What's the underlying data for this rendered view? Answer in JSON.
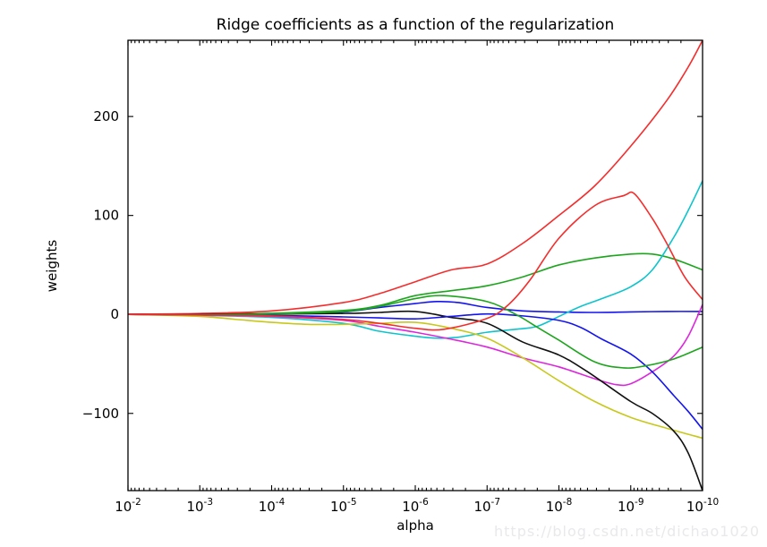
{
  "title": "Ridge coefficients as a function of the regularization",
  "watermark": "https://blog.csdn.net/dichao1020",
  "chart_data": {
    "type": "line",
    "title": "Ridge coefficients as a function of the regularization",
    "xlabel": "alpha",
    "ylabel": "weights",
    "x_scale": "log",
    "x_axis_reversed": true,
    "grid": false,
    "legend": null,
    "x_tick_exponents": [
      -2,
      -3,
      -4,
      -5,
      -6,
      -7,
      -8,
      -9,
      -10
    ],
    "x_tick_labels": [
      "10^-2",
      "10^-3",
      "10^-4",
      "10^-5",
      "10^-6",
      "10^-7",
      "10^-8",
      "10^-9",
      "10^-10"
    ],
    "y_ticks": [
      -100,
      0,
      100,
      200
    ],
    "xlim_log10_alpha": [
      -2,
      -10
    ],
    "ylim": [
      -178,
      277
    ],
    "series": [
      {
        "name": "coef_0_blue",
        "color": "#1414f0",
        "points": [
          [
            -2,
            0
          ],
          [
            -3,
            0.3
          ],
          [
            -4,
            1
          ],
          [
            -4.5,
            1.6
          ],
          [
            -5,
            2.5
          ],
          [
            -5.5,
            7
          ],
          [
            -6,
            11
          ],
          [
            -6.3,
            13
          ],
          [
            -6.6,
            12
          ],
          [
            -7,
            7
          ],
          [
            -7.5,
            3.5
          ],
          [
            -8,
            2.5
          ],
          [
            -8.5,
            2
          ],
          [
            -9,
            2.5
          ],
          [
            -9.5,
            3
          ],
          [
            -10,
            3
          ]
        ]
      },
      {
        "name": "coef_1_green",
        "color": "#1da51d",
        "points": [
          [
            -2,
            0
          ],
          [
            -3,
            0.4
          ],
          [
            -4,
            1.2
          ],
          [
            -5,
            4
          ],
          [
            -5.5,
            9
          ],
          [
            -6,
            19
          ],
          [
            -6.5,
            24
          ],
          [
            -7,
            29
          ],
          [
            -7.5,
            38
          ],
          [
            -8,
            50
          ],
          [
            -8.5,
            57
          ],
          [
            -9,
            61
          ],
          [
            -9.3,
            61
          ],
          [
            -9.6,
            56
          ],
          [
            -10,
            45
          ]
        ]
      },
      {
        "name": "coef_2_red",
        "color": "#f52c2c",
        "points": [
          [
            -2,
            0.3
          ],
          [
            -3,
            1
          ],
          [
            -4,
            3.5
          ],
          [
            -5,
            12
          ],
          [
            -5.5,
            21
          ],
          [
            -6,
            33
          ],
          [
            -6.5,
            45
          ],
          [
            -7,
            51
          ],
          [
            -7.5,
            72
          ],
          [
            -8,
            100
          ],
          [
            -8.5,
            130
          ],
          [
            -9,
            170
          ],
          [
            -9.5,
            216
          ],
          [
            -9.8,
            250
          ],
          [
            -10,
            277
          ]
        ]
      },
      {
        "name": "coef_3_cyan",
        "color": "#0ec4cc",
        "points": [
          [
            -2,
            0
          ],
          [
            -3,
            -1
          ],
          [
            -4,
            -3
          ],
          [
            -5,
            -9
          ],
          [
            -5.5,
            -17
          ],
          [
            -6,
            -22
          ],
          [
            -6.3,
            -24
          ],
          [
            -6.6,
            -23
          ],
          [
            -7,
            -18
          ],
          [
            -7.4,
            -15
          ],
          [
            -7.7,
            -12
          ],
          [
            -8,
            -2
          ],
          [
            -8.3,
            8
          ],
          [
            -8.6,
            16
          ],
          [
            -9,
            28
          ],
          [
            -9.3,
            45
          ],
          [
            -9.6,
            78
          ],
          [
            -9.8,
            105
          ],
          [
            -10,
            135
          ]
        ]
      },
      {
        "name": "coef_4_magenta",
        "color": "#dc28dc",
        "points": [
          [
            -2,
            0
          ],
          [
            -3,
            -0.6
          ],
          [
            -4,
            -2
          ],
          [
            -5,
            -6
          ],
          [
            -5.5,
            -12
          ],
          [
            -6,
            -18
          ],
          [
            -6.5,
            -25
          ],
          [
            -7,
            -33
          ],
          [
            -7.5,
            -44
          ],
          [
            -8,
            -53
          ],
          [
            -8.5,
            -65
          ],
          [
            -8.8,
            -71
          ],
          [
            -9,
            -70
          ],
          [
            -9.3,
            -58
          ],
          [
            -9.6,
            -42
          ],
          [
            -9.8,
            -22
          ],
          [
            -10,
            10
          ]
        ]
      },
      {
        "name": "coef_5_yellow",
        "color": "#c8c81b",
        "points": [
          [
            -2,
            0
          ],
          [
            -3,
            -2
          ],
          [
            -3.5,
            -5
          ],
          [
            -4,
            -8
          ],
          [
            -4.5,
            -10
          ],
          [
            -5,
            -10
          ],
          [
            -5.5,
            -9
          ],
          [
            -6,
            -8
          ],
          [
            -6.5,
            -14
          ],
          [
            -7,
            -24
          ],
          [
            -7.5,
            -44
          ],
          [
            -8,
            -67
          ],
          [
            -8.5,
            -88
          ],
          [
            -9,
            -104
          ],
          [
            -9.5,
            -115
          ],
          [
            -10,
            -125
          ]
        ]
      },
      {
        "name": "coef_6_black",
        "color": "#111111",
        "points": [
          [
            -2,
            0
          ],
          [
            -3,
            0
          ],
          [
            -4,
            0.4
          ],
          [
            -5,
            1
          ],
          [
            -5.5,
            2
          ],
          [
            -6,
            3
          ],
          [
            -6.5,
            -3
          ],
          [
            -7,
            -9
          ],
          [
            -7.5,
            -28
          ],
          [
            -8,
            -41
          ],
          [
            -8.4,
            -58
          ],
          [
            -9,
            -88
          ],
          [
            -9.3,
            -100
          ],
          [
            -9.6,
            -118
          ],
          [
            -9.8,
            -140
          ],
          [
            -10,
            -178
          ]
        ]
      },
      {
        "name": "coef_7_blue",
        "color": "#1414f0",
        "points": [
          [
            -2,
            0
          ],
          [
            -3,
            -0.3
          ],
          [
            -4,
            -1
          ],
          [
            -5,
            -2.5
          ],
          [
            -5.5,
            -3.5
          ],
          [
            -6,
            -4.5
          ],
          [
            -6.5,
            -2
          ],
          [
            -7,
            0.5
          ],
          [
            -7.5,
            -1.5
          ],
          [
            -8,
            -6
          ],
          [
            -8.3,
            -13
          ],
          [
            -8.6,
            -25
          ],
          [
            -9,
            -40
          ],
          [
            -9.3,
            -58
          ],
          [
            -9.6,
            -82
          ],
          [
            -9.8,
            -98
          ],
          [
            -10,
            -116
          ]
        ]
      },
      {
        "name": "coef_8_green",
        "color": "#1da51d",
        "points": [
          [
            -2,
            0
          ],
          [
            -3,
            -0.4
          ],
          [
            -4,
            0.5
          ],
          [
            -5,
            3
          ],
          [
            -5.5,
            8
          ],
          [
            -6,
            16
          ],
          [
            -6.4,
            19
          ],
          [
            -7,
            13
          ],
          [
            -7.4,
            0
          ],
          [
            -7.7,
            -13
          ],
          [
            -8,
            -26
          ],
          [
            -8.5,
            -48
          ],
          [
            -8.9,
            -54
          ],
          [
            -9.2,
            -52
          ],
          [
            -9.6,
            -45
          ],
          [
            -10,
            -33
          ]
        ]
      },
      {
        "name": "coef_9_red",
        "color": "#f52c2c",
        "points": [
          [
            -2,
            0
          ],
          [
            -3,
            -0.5
          ],
          [
            -4,
            -1.5
          ],
          [
            -5,
            -5
          ],
          [
            -5.5,
            -9
          ],
          [
            -6,
            -14
          ],
          [
            -6.4,
            -15
          ],
          [
            -7,
            -4
          ],
          [
            -7.3,
            10
          ],
          [
            -7.6,
            35
          ],
          [
            -8,
            77
          ],
          [
            -8.5,
            110
          ],
          [
            -8.9,
            120
          ],
          [
            -9.05,
            122
          ],
          [
            -9.3,
            97
          ],
          [
            -9.5,
            72
          ],
          [
            -9.75,
            38
          ],
          [
            -10,
            15
          ]
        ]
      }
    ]
  }
}
